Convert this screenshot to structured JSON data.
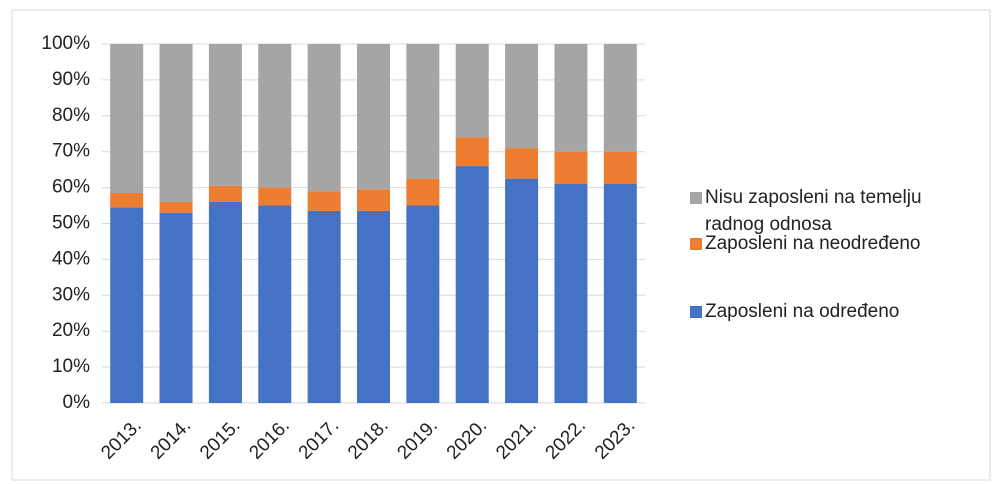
{
  "chart_data": {
    "type": "stacked_bar_percent",
    "categories": [
      "2013.",
      "2014.",
      "2015.",
      "2016.",
      "2017.",
      "2018.",
      "2019.",
      "2020.",
      "2021.",
      "2022.",
      "2023."
    ],
    "series": [
      {
        "name": "Zaposleni na određeno",
        "color": "#4472c4",
        "values": [
          54.5,
          53,
          56,
          55,
          53.5,
          53.5,
          55,
          66,
          62.5,
          61,
          61
        ]
      },
      {
        "name": "Zaposleni na neodređeno",
        "color": "#ed7d31",
        "values": [
          4,
          3,
          4.5,
          5,
          5.5,
          6,
          7.5,
          8,
          8.5,
          9,
          9
        ]
      },
      {
        "name": "Nisu zaposleni na temelju radnog odnosa",
        "color": "#a5a5a5",
        "values": [
          41.5,
          44,
          39.5,
          40,
          41,
          40.5,
          37.5,
          26,
          29,
          30,
          30
        ]
      }
    ],
    "ylim": [
      0,
      100
    ],
    "yticks": [
      {
        "value": 0,
        "label": "0%"
      },
      {
        "value": 10,
        "label": "10%"
      },
      {
        "value": 20,
        "label": "20%"
      },
      {
        "value": 30,
        "label": "30%"
      },
      {
        "value": 40,
        "label": "40%"
      },
      {
        "value": 50,
        "label": "50%"
      },
      {
        "value": 60,
        "label": "60%"
      },
      {
        "value": 70,
        "label": "70%"
      },
      {
        "value": 80,
        "label": "80%"
      },
      {
        "value": 90,
        "label": "90%"
      },
      {
        "value": 100,
        "label": "100%"
      }
    ],
    "grid": true,
    "legend": "right"
  }
}
